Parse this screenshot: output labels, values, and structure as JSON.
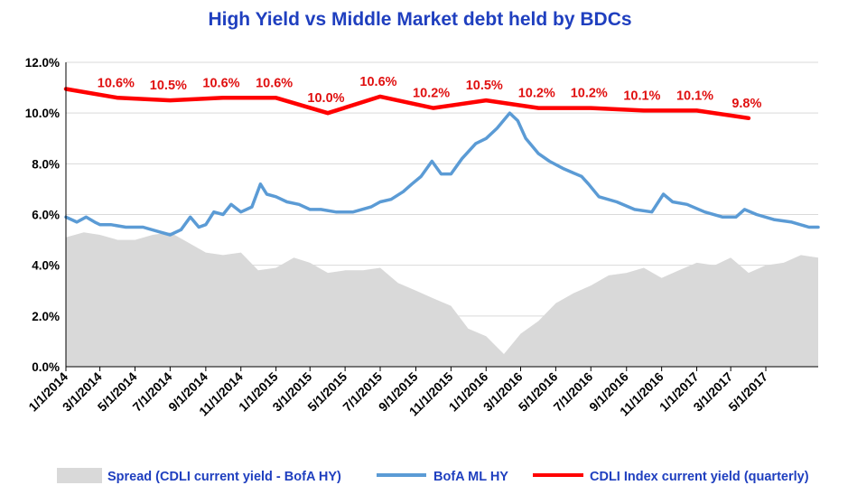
{
  "chart_data": {
    "type": "line",
    "title": "High Yield  vs  Middle Market debt held by BDCs",
    "ylim": [
      0,
      12
    ],
    "yticks": [
      {
        "v": 0,
        "label": "0.0%"
      },
      {
        "v": 2,
        "label": "2.0%"
      },
      {
        "v": 4,
        "label": "4.0%"
      },
      {
        "v": 6,
        "label": "6.0%"
      },
      {
        "v": 8,
        "label": "8.0%"
      },
      {
        "v": 10,
        "label": "10.0%"
      },
      {
        "v": 12,
        "label": "12.0%"
      }
    ],
    "xrange": [
      "2014-01-01",
      "2017-07-31"
    ],
    "xticks": [
      "1/1/2014",
      "3/1/2014",
      "5/1/2014",
      "7/1/2014",
      "9/1/2014",
      "11/1/2014",
      "1/1/2015",
      "3/1/2015",
      "5/1/2015",
      "7/1/2015",
      "9/1/2015",
      "11/1/2015",
      "1/1/2016",
      "3/1/2016",
      "5/1/2016",
      "7/1/2016",
      "9/1/2016",
      "11/1/2016",
      "1/1/2017",
      "3/1/2017",
      "5/1/2017"
    ],
    "grid": "horizontal",
    "legend": "bottom",
    "series": [
      {
        "name": "Spread (CDLI current yield - BofA HY)",
        "type": "area",
        "color": "#d9d9d9",
        "x": [
          "2014-01-01",
          "2014-02-01",
          "2014-03-01",
          "2014-04-01",
          "2014-05-01",
          "2014-06-01",
          "2014-07-01",
          "2014-08-01",
          "2014-09-01",
          "2014-10-01",
          "2014-11-01",
          "2014-12-01",
          "2015-01-01",
          "2015-02-01",
          "2015-03-01",
          "2015-04-01",
          "2015-05-01",
          "2015-06-01",
          "2015-07-01",
          "2015-08-01",
          "2015-09-01",
          "2015-10-01",
          "2015-11-01",
          "2015-12-01",
          "2016-01-01",
          "2016-02-01",
          "2016-03-01",
          "2016-04-01",
          "2016-05-01",
          "2016-06-01",
          "2016-07-01",
          "2016-08-01",
          "2016-09-01",
          "2016-10-01",
          "2016-11-01",
          "2016-12-01",
          "2017-01-01",
          "2017-02-01",
          "2017-03-01",
          "2017-04-01",
          "2017-05-01",
          "2017-06-01",
          "2017-07-01",
          "2017-07-31"
        ],
        "y": [
          5.1,
          5.3,
          5.2,
          5.0,
          5.0,
          5.2,
          5.3,
          4.9,
          4.5,
          4.4,
          4.5,
          3.8,
          3.9,
          4.3,
          4.1,
          3.7,
          3.8,
          3.8,
          3.9,
          3.3,
          3.0,
          2.7,
          2.4,
          1.5,
          1.2,
          0.5,
          1.3,
          1.8,
          2.5,
          2.9,
          3.2,
          3.6,
          3.7,
          3.9,
          3.5,
          3.8,
          4.1,
          4.0,
          4.3,
          3.7,
          4.0,
          4.1,
          4.4,
          4.3
        ]
      },
      {
        "name": "BofA ML HY",
        "type": "line",
        "color": "#5b9bd5",
        "x": [
          "2014-01-01",
          "2014-01-20",
          "2014-02-05",
          "2014-02-20",
          "2014-03-01",
          "2014-03-20",
          "2014-04-15",
          "2014-05-15",
          "2014-06-15",
          "2014-07-01",
          "2014-07-20",
          "2014-08-05",
          "2014-08-20",
          "2014-09-01",
          "2014-09-15",
          "2014-10-01",
          "2014-10-15",
          "2014-11-01",
          "2014-11-20",
          "2014-12-05",
          "2014-12-16",
          "2015-01-01",
          "2015-01-20",
          "2015-02-10",
          "2015-03-01",
          "2015-03-20",
          "2015-04-15",
          "2015-05-15",
          "2015-06-15",
          "2015-07-01",
          "2015-07-20",
          "2015-08-10",
          "2015-08-25",
          "2015-09-10",
          "2015-09-29",
          "2015-10-15",
          "2015-11-01",
          "2015-11-20",
          "2015-12-14",
          "2016-01-01",
          "2016-01-20",
          "2016-02-11",
          "2016-02-25",
          "2016-03-10",
          "2016-04-01",
          "2016-04-20",
          "2016-05-15",
          "2016-06-15",
          "2016-06-27",
          "2016-07-15",
          "2016-08-15",
          "2016-09-15",
          "2016-10-15",
          "2016-11-04",
          "2016-11-20",
          "2016-12-15",
          "2017-01-15",
          "2017-02-15",
          "2017-03-10",
          "2017-03-25",
          "2017-04-15",
          "2017-05-15",
          "2017-06-15",
          "2017-07-15",
          "2017-07-31"
        ],
        "y": [
          5.9,
          5.7,
          5.9,
          5.7,
          5.6,
          5.6,
          5.5,
          5.5,
          5.3,
          5.2,
          5.4,
          5.9,
          5.5,
          5.6,
          6.1,
          6.0,
          6.4,
          6.1,
          6.3,
          7.2,
          6.8,
          6.7,
          6.5,
          6.4,
          6.2,
          6.2,
          6.1,
          6.1,
          6.3,
          6.5,
          6.6,
          6.9,
          7.2,
          7.5,
          8.1,
          7.6,
          7.6,
          8.2,
          8.8,
          9.0,
          9.4,
          10.0,
          9.7,
          9.0,
          8.4,
          8.1,
          7.8,
          7.5,
          7.2,
          6.7,
          6.5,
          6.2,
          6.1,
          6.8,
          6.5,
          6.4,
          6.1,
          5.9,
          5.9,
          6.2,
          6.0,
          5.8,
          5.7,
          5.5,
          5.5
        ]
      },
      {
        "name": "CDLI Index current yield (quarterly)",
        "type": "line",
        "color": "#ff0000",
        "x": [
          "2014-01-01",
          "2014-04-01",
          "2014-07-01",
          "2014-10-01",
          "2015-01-01",
          "2015-04-01",
          "2015-07-01",
          "2015-10-01",
          "2016-01-01",
          "2016-04-01",
          "2016-07-01",
          "2016-10-01",
          "2017-01-01",
          "2017-04-01"
        ],
        "y": [
          10.95,
          10.6,
          10.5,
          10.6,
          10.6,
          10.0,
          10.65,
          10.2,
          10.5,
          10.2,
          10.2,
          10.1,
          10.1,
          9.8
        ],
        "labels": [
          "",
          "10.6%",
          "10.5%",
          "10.6%",
          "10.6%",
          "10.0%",
          "10.6%",
          "10.2%",
          "10.5%",
          "10.2%",
          "10.2%",
          "10.1%",
          "10.1%",
          "9.8%"
        ]
      }
    ]
  }
}
